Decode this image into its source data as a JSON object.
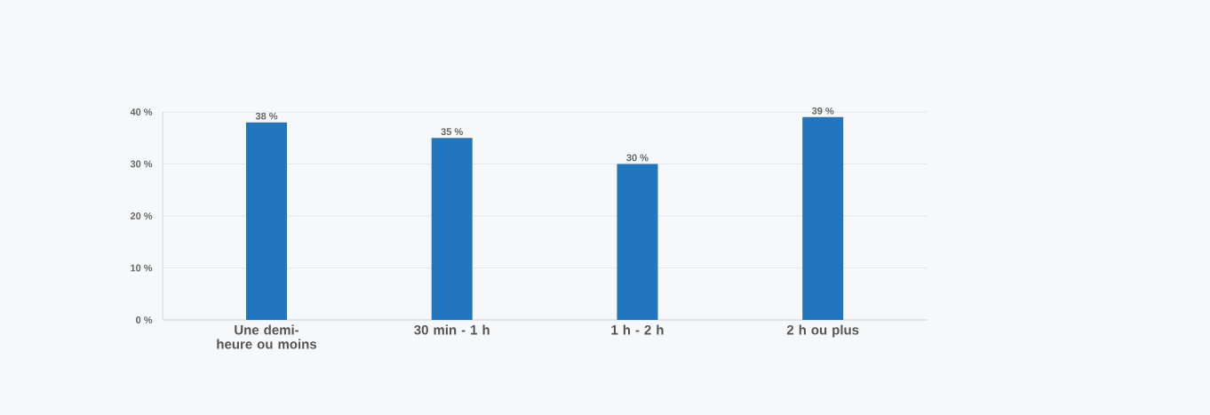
{
  "chart_data": {
    "type": "bar",
    "categories": [
      "Une demi-heure ou moins",
      "30 min - 1 h",
      "1 h - 2 h",
      "2 h ou plus"
    ],
    "values": [
      38,
      35,
      30,
      39
    ],
    "value_labels": [
      "38 %",
      "35 %",
      "30 %",
      "39 %"
    ],
    "color": "#2176bd",
    "ylim": [
      0,
      40
    ],
    "yticks": [
      {
        "value": 0,
        "label": "0 %"
      },
      {
        "value": 10,
        "label": "10 %"
      },
      {
        "value": 20,
        "label": "20 %"
      },
      {
        "value": 30,
        "label": "30 %"
      },
      {
        "value": 40,
        "label": "40 %"
      }
    ],
    "grid": "y"
  }
}
